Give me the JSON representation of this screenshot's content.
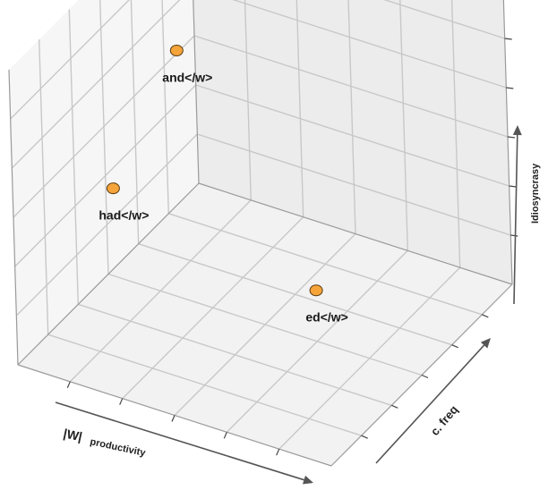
{
  "chart_data": {
    "type": "scatter",
    "dimensions": 3,
    "axes": {
      "x": {
        "labels": [
          "|W|",
          "productivity"
        ]
      },
      "y": {
        "label": "c. freq"
      },
      "z": {
        "label": "Idiosyncrasy"
      }
    },
    "grid": true,
    "points": [
      {
        "label": "had</w>",
        "x": 1.2,
        "y": 3.4,
        "z": 4.3
      },
      {
        "label": "and</w>",
        "x": 1.1,
        "y": 7.2,
        "z": 6.6
      },
      {
        "label": "ed</w>",
        "x": 6.8,
        "y": 4.8,
        "z": 1.9
      }
    ],
    "colors": {
      "marker": "#f5a43a",
      "marker_edge": "#5a3a10"
    }
  }
}
